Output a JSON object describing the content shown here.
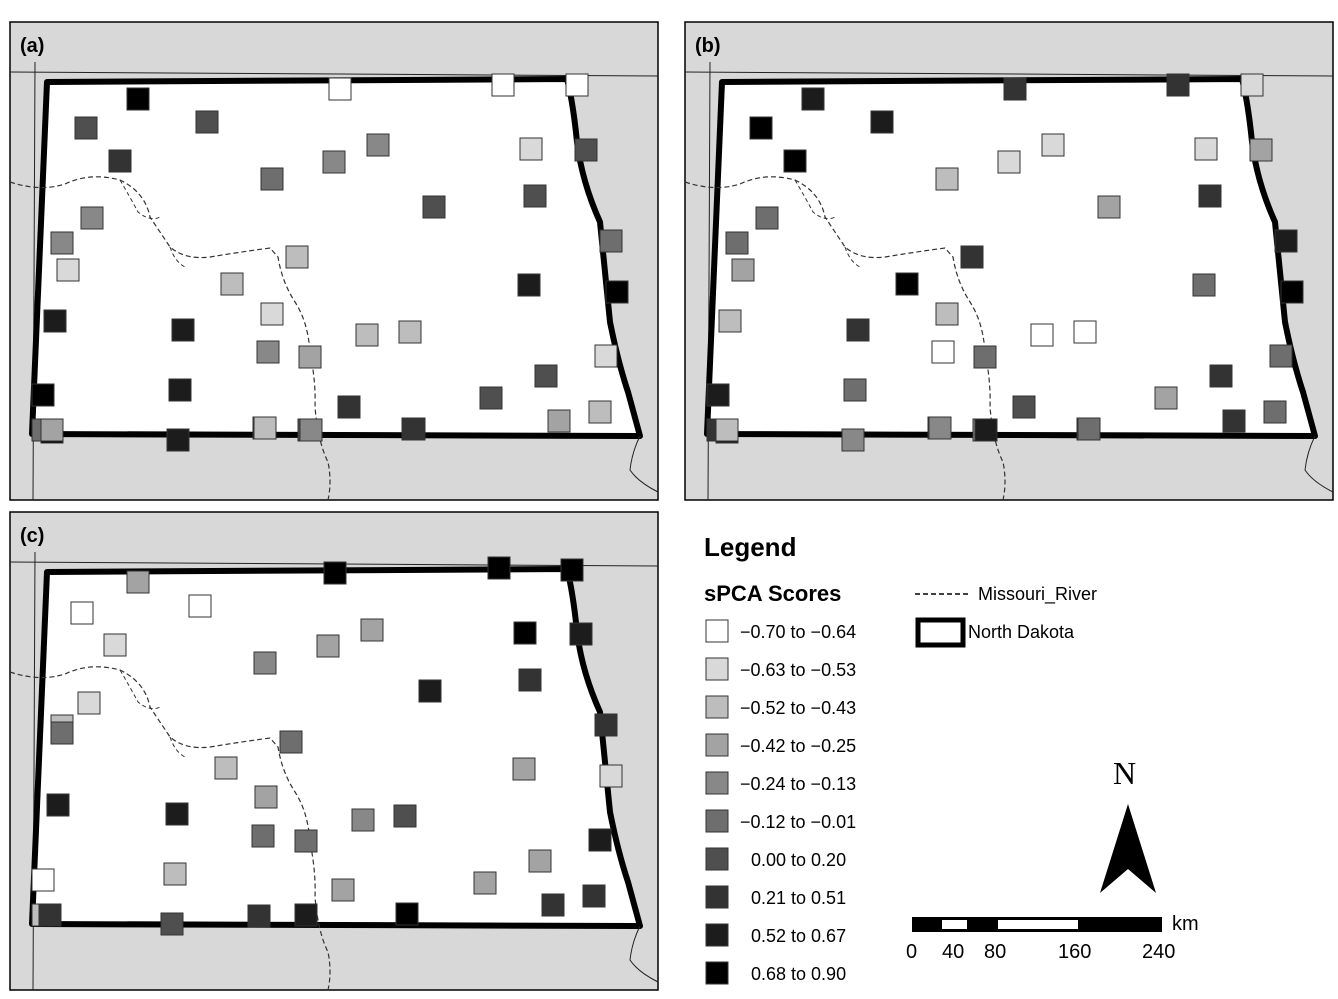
{
  "panels": [
    {
      "label": "(a)",
      "sites": [
        [
          2,
          9
        ],
        [
          3,
          6
        ],
        [
          6,
          6
        ],
        [
          7,
          7
        ],
        [
          9,
          4
        ],
        [
          10,
          4
        ],
        [
          11,
          5
        ],
        [
          11,
          4
        ],
        [
          12,
          4
        ],
        [
          13,
          2
        ],
        [
          16,
          2
        ],
        [
          17,
          1
        ],
        [
          18,
          8
        ],
        [
          19,
          8
        ],
        [
          20,
          4
        ],
        [
          21,
          3
        ],
        [
          22,
          2
        ],
        [
          23,
          2
        ],
        [
          24,
          0
        ],
        [
          24,
          0
        ],
        [
          25,
          0
        ],
        [
          25,
          1
        ],
        [
          26,
          6
        ],
        [
          27,
          6
        ],
        [
          28,
          6
        ],
        [
          28,
          5
        ],
        [
          29,
          8
        ],
        [
          30,
          9
        ],
        [
          31,
          9
        ],
        [
          32,
          8
        ],
        [
          33,
          7
        ],
        [
          34,
          6
        ],
        [
          35,
          6
        ],
        [
          36,
          3
        ],
        [
          37,
          5
        ],
        [
          38,
          9
        ],
        [
          39,
          8
        ],
        [
          40,
          8
        ],
        [
          41,
          6
        ],
        [
          42,
          5
        ],
        [
          43,
          3
        ],
        [
          44,
          2
        ],
        [
          45,
          1
        ],
        [
          46,
          1
        ],
        [
          47,
          3
        ],
        [
          48,
          2
        ],
        [
          49,
          4
        ],
        [
          50,
          7
        ]
      ]
    },
    {
      "label": "(b)",
      "sites": [
        [
          2,
          8
        ],
        [
          3,
          9
        ],
        [
          6,
          8
        ],
        [
          7,
          9
        ],
        [
          9,
          5
        ],
        [
          10,
          5
        ],
        [
          11,
          2
        ],
        [
          11,
          1
        ],
        [
          12,
          1
        ],
        [
          13,
          7
        ],
        [
          16,
          9
        ],
        [
          17,
          2
        ],
        [
          18,
          2
        ],
        [
          19,
          7
        ],
        [
          20,
          0
        ],
        [
          21,
          5
        ],
        [
          22,
          0
        ],
        [
          23,
          0
        ],
        [
          24,
          7
        ],
        [
          24,
          7
        ],
        [
          25,
          1
        ],
        [
          25,
          1
        ],
        [
          26,
          3
        ],
        [
          27,
          3
        ],
        [
          28,
          7
        ],
        [
          28,
          8
        ],
        [
          29,
          5
        ],
        [
          30,
          9
        ],
        [
          31,
          8
        ],
        [
          32,
          5
        ],
        [
          33,
          6
        ],
        [
          34,
          3
        ],
        [
          35,
          7
        ],
        [
          36,
          8
        ],
        [
          37,
          7
        ],
        [
          38,
          8
        ],
        [
          39,
          4
        ],
        [
          40,
          6
        ],
        [
          41,
          4
        ],
        [
          42,
          5
        ],
        [
          43,
          7
        ],
        [
          44,
          5
        ],
        [
          45,
          5
        ],
        [
          46,
          3
        ],
        [
          47,
          2
        ],
        [
          48,
          4
        ],
        [
          49,
          8
        ],
        [
          50,
          5
        ]
      ]
    },
    {
      "label": "(c)",
      "sites": [
        [
          2,
          3
        ],
        [
          3,
          0
        ],
        [
          6,
          0
        ],
        [
          7,
          1
        ],
        [
          9,
          2
        ],
        [
          10,
          1
        ],
        [
          11,
          4
        ],
        [
          11,
          3
        ],
        [
          12,
          3
        ],
        [
          13,
          5
        ],
        [
          16,
          2
        ],
        [
          17,
          3
        ],
        [
          18,
          8
        ],
        [
          19,
          8
        ],
        [
          20,
          5
        ],
        [
          21,
          5
        ],
        [
          22,
          4
        ],
        [
          23,
          6
        ],
        [
          24,
          9
        ],
        [
          24,
          9
        ],
        [
          25,
          9
        ],
        [
          25,
          9
        ],
        [
          26,
          8
        ],
        [
          27,
          8
        ],
        [
          28,
          7
        ],
        [
          28,
          7
        ],
        [
          29,
          3
        ],
        [
          30,
          1
        ],
        [
          31,
          0
        ],
        [
          32,
          2
        ],
        [
          33,
          3
        ],
        [
          34,
          3
        ],
        [
          35,
          3
        ],
        [
          36,
          3
        ],
        [
          37,
          2
        ],
        [
          38,
          6
        ],
        [
          39,
          6
        ],
        [
          40,
          6
        ],
        [
          41,
          8
        ],
        [
          42,
          8
        ],
        [
          43,
          7
        ],
        [
          44,
          7
        ],
        [
          45,
          8
        ],
        [
          46,
          5
        ],
        [
          47,
          7
        ],
        [
          48,
          7
        ],
        [
          49,
          8
        ],
        [
          50,
          9
        ]
      ]
    }
  ],
  "legend": {
    "title": "Legend",
    "scores_title": "sPCA Scores",
    "classes": [
      {
        "label": "−0.70 to −0.64",
        "color": "#ffffff"
      },
      {
        "label": "−0.63 to −0.53",
        "color": "#d9d9d9"
      },
      {
        "label": "−0.52 to −0.43",
        "color": "#bdbdbd"
      },
      {
        "label": "−0.42 to −0.25",
        "color": "#a3a3a3"
      },
      {
        "label": "−0.24 to −0.13",
        "color": "#888888"
      },
      {
        "label": "−0.12 to −0.01",
        "color": "#6e6e6e"
      },
      {
        "label": "0.00 to 0.20",
        "color": "#4f4f4f"
      },
      {
        "label": "0.21 to 0.51",
        "color": "#333333"
      },
      {
        "label": "0.52 to 0.67",
        "color": "#1c1c1c"
      },
      {
        "label": "0.68 to 0.90",
        "color": "#000000"
      }
    ],
    "river_label": "Missouri_River",
    "state_label": "North Dakota"
  },
  "north_arrow": {
    "label": "N"
  },
  "scale_bar": {
    "unit": "km",
    "ticks": [
      "0",
      "40",
      "80",
      "160",
      "240"
    ]
  },
  "colors": {
    "background_land": "#d8d8d8",
    "state_fill": "#ffffff",
    "state_border": "#000000"
  }
}
